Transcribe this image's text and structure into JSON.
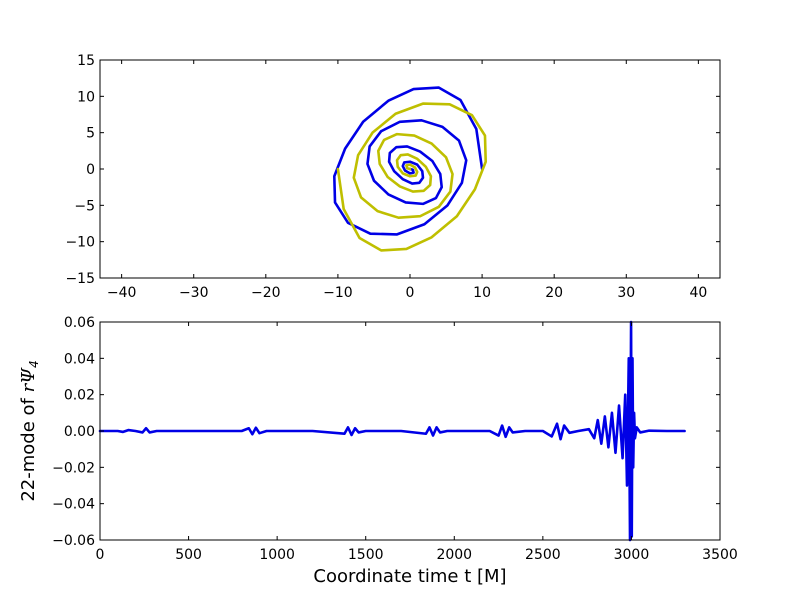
{
  "chart_data": [
    {
      "type": "line",
      "title": "",
      "xlabel": "",
      "ylabel": "",
      "xlim": [
        -43,
        43
      ],
      "ylim": [
        -15,
        15
      ],
      "x_ticks": [
        -40,
        -30,
        -20,
        -10,
        0,
        10,
        20,
        30,
        40
      ],
      "x_tick_labels": [
        "−40",
        "−30",
        "−20",
        "−10",
        "0",
        "10",
        "20",
        "30",
        "40"
      ],
      "y_ticks": [
        15,
        10,
        5,
        0,
        -5,
        -10,
        -15
      ],
      "y_tick_labels": [
        "15",
        "10",
        "5",
        "0",
        "−5",
        "−10",
        "−15"
      ],
      "grid": false,
      "series": [
        {
          "color": "#0000e6",
          "description_values": {
            "x": [
              10.0,
              9.2,
              7.0,
              4.0,
              0.5,
              -3.0,
              -6.5,
              -9.0,
              -10.5,
              -10.4,
              -8.6,
              -5.5,
              -1.8,
              2.0,
              5.2,
              7.2,
              7.8,
              6.8,
              4.5,
              1.6,
              -1.4,
              -4.0,
              -5.6,
              -5.9,
              -5.0,
              -3.0,
              -0.6,
              1.8,
              3.6,
              4.4,
              4.2,
              3.1,
              1.4,
              -0.4,
              -1.9,
              -2.8,
              -2.9,
              -2.2,
              -1.0,
              0.3,
              1.3,
              1.8,
              1.7,
              1.0,
              0.0,
              -0.8,
              -1.0,
              -0.7,
              0.0,
              0.5,
              0.4,
              0.0
            ],
            "y": [
              0.0,
              5.5,
              9.5,
              11.2,
              11.0,
              9.4,
              6.5,
              2.8,
              -1.0,
              -4.6,
              -7.4,
              -8.9,
              -9.0,
              -7.6,
              -5.0,
              -1.9,
              1.2,
              3.9,
              5.8,
              6.7,
              6.5,
              5.2,
              3.1,
              0.7,
              -1.6,
              -3.5,
              -4.6,
              -4.8,
              -4.0,
              -2.5,
              -0.7,
              1.1,
              2.4,
              3.1,
              3.0,
              2.2,
              1.0,
              -0.3,
              -1.4,
              -2.0,
              -1.9,
              -1.2,
              -0.3,
              0.6,
              1.0,
              0.9,
              0.4,
              -0.2,
              -0.6,
              -0.5,
              -0.1,
              0.0
            ]
          }
        },
        {
          "color": "#bfbf00",
          "description_values": {
            "x": [
              -10.0,
              -9.2,
              -7.0,
              -4.0,
              -0.5,
              3.0,
              6.5,
              9.0,
              10.5,
              10.4,
              8.6,
              5.5,
              1.8,
              -2.0,
              -5.2,
              -7.2,
              -7.8,
              -6.8,
              -4.5,
              -1.6,
              1.4,
              4.0,
              5.6,
              5.9,
              5.0,
              3.0,
              0.6,
              -1.8,
              -3.6,
              -4.4,
              -4.2,
              -3.1,
              -1.4,
              0.4,
              1.9,
              2.8,
              2.9,
              2.2,
              1.0,
              -0.3,
              -1.3,
              -1.8,
              -1.7,
              -1.0,
              0.0,
              0.8,
              1.0,
              0.7,
              0.0,
              -0.5,
              -0.4,
              0.0
            ],
            "y": [
              0.0,
              -5.5,
              -9.5,
              -11.2,
              -11.0,
              -9.4,
              -6.5,
              -2.8,
              1.0,
              4.6,
              7.4,
              8.9,
              9.0,
              7.6,
              5.0,
              1.9,
              -1.2,
              -3.9,
              -5.8,
              -6.7,
              -6.5,
              -5.2,
              -3.1,
              -0.7,
              1.6,
              3.5,
              4.6,
              4.8,
              4.0,
              2.5,
              0.7,
              -1.1,
              -2.4,
              -3.1,
              -3.0,
              -2.2,
              -1.0,
              0.3,
              1.4,
              2.0,
              1.9,
              1.2,
              0.3,
              -0.6,
              -1.0,
              -0.9,
              -0.4,
              0.2,
              0.6,
              0.5,
              0.1,
              0.0
            ]
          }
        }
      ]
    },
    {
      "type": "line",
      "title": "",
      "xlabel": "Coordinate time t [M]",
      "ylabel_prefix": "22-mode of ",
      "ylabel_math": "rΨ",
      "ylabel_sub": "4",
      "xlim": [
        0,
        3500
      ],
      "ylim": [
        -0.06,
        0.06
      ],
      "x_ticks": [
        0,
        500,
        1000,
        1500,
        2000,
        2500,
        3000,
        3500
      ],
      "x_tick_labels": [
        "0",
        "500",
        "1000",
        "1500",
        "2000",
        "2500",
        "3000",
        "3500"
      ],
      "y_ticks": [
        0.06,
        0.04,
        0.02,
        0.0,
        -0.02,
        -0.04,
        -0.06
      ],
      "y_tick_labels": [
        "0.06",
        "0.04",
        "0.02",
        "0.00",
        "−0.02",
        "−0.04",
        "−0.06"
      ],
      "grid": false,
      "series": [
        {
          "color": "#0000e6",
          "x": [
            0,
            100,
            130,
            160,
            200,
            240,
            260,
            280,
            320,
            400,
            600,
            800,
            840,
            860,
            880,
            900,
            940,
            1000,
            1200,
            1380,
            1400,
            1420,
            1440,
            1460,
            1500,
            1700,
            1840,
            1860,
            1880,
            1900,
            1920,
            1960,
            2100,
            2200,
            2250,
            2270,
            2290,
            2310,
            2330,
            2400,
            2500,
            2550,
            2580,
            2600,
            2620,
            2650,
            2700,
            2760,
            2790,
            2810,
            2830,
            2850,
            2870,
            2890,
            2910,
            2930,
            2950,
            2965,
            2975,
            2985,
            2992,
            2998,
            3002,
            3006,
            3010,
            3015,
            3020,
            3030,
            3050,
            3100,
            3200,
            3300
          ],
          "y": [
            0.0,
            0.0,
            -0.0005,
            0.0005,
            0.0,
            -0.0008,
            0.0015,
            -0.0008,
            0.0,
            0.0,
            0.0,
            0.0,
            0.0015,
            -0.0018,
            0.0018,
            -0.0012,
            0.0,
            0.0,
            0.0,
            -0.0015,
            0.002,
            -0.0022,
            0.0015,
            -0.0008,
            0.0,
            0.0,
            -0.0015,
            0.002,
            -0.0025,
            0.002,
            -0.0008,
            0.0,
            0.0,
            0.0,
            -0.0025,
            0.003,
            -0.0032,
            0.002,
            -0.0008,
            0.0,
            0.0,
            -0.003,
            0.004,
            -0.0045,
            0.003,
            -0.001,
            0.0,
            0.001,
            -0.004,
            0.006,
            -0.007,
            0.008,
            -0.009,
            0.01,
            -0.012,
            0.014,
            -0.015,
            0.02,
            -0.03,
            0.04,
            -0.06,
            0.06,
            -0.058,
            0.04,
            -0.02,
            0.01,
            -0.004,
            0.002,
            -0.0008,
            0.0002,
            0.0,
            0.0
          ]
        }
      ]
    }
  ]
}
